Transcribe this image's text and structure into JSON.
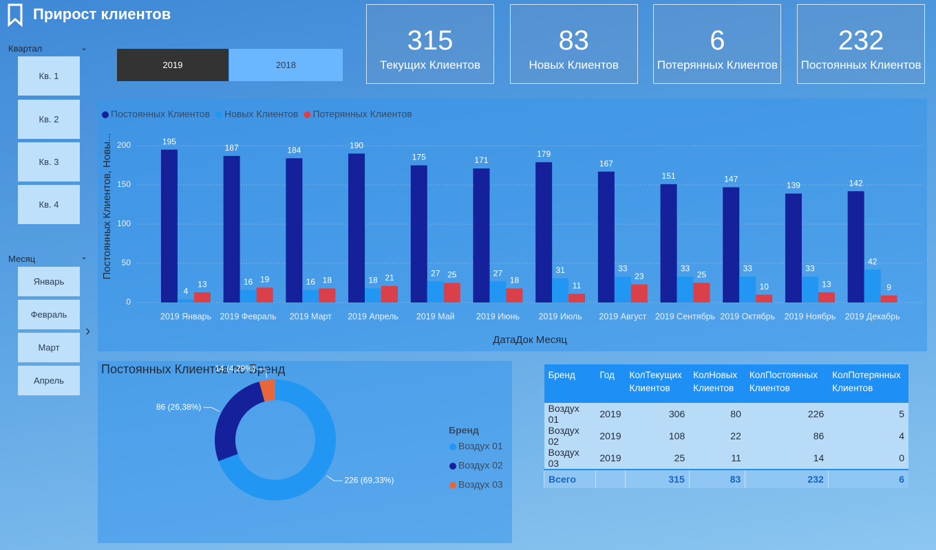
{
  "header": {
    "title": "Прирост клиентов"
  },
  "slicers": {
    "quarter": {
      "title": "Квартал",
      "items": [
        "Кв. 1",
        "Кв. 2",
        "Кв. 3",
        "Кв. 4"
      ]
    },
    "month": {
      "title": "Месяц",
      "items": [
        "Январь",
        "Февраль",
        "Март",
        "Апрель"
      ]
    }
  },
  "year_toggle": {
    "options": [
      "2019",
      "2018"
    ],
    "selected": 0
  },
  "cards": [
    {
      "value": 315,
      "label": "Текущих Клиентов"
    },
    {
      "value": 83,
      "label": "Новых Клиентов"
    },
    {
      "value": 6,
      "label": "Потерянных Клиентов"
    },
    {
      "value": 232,
      "label": "Постоянных Клиентов"
    }
  ],
  "chart_data": [
    {
      "type": "bar",
      "x_label": "ДатаДок Месяц",
      "y_label": "Постоянных Клиентов, Новы...",
      "categories": [
        "2019 Январь",
        "2019 Февраль",
        "2019 Март",
        "2019 Апрель",
        "2019 Май",
        "2019 Июнь",
        "2019 Июль",
        "2019 Август",
        "2019 Сентябрь",
        "2019 Октябрь",
        "2019 Ноябрь",
        "2019 Декабрь"
      ],
      "series": [
        {
          "name": "Постоянных Клиентов",
          "color": "#14219b",
          "values": [
            195,
            187,
            184,
            190,
            175,
            171,
            179,
            167,
            151,
            147,
            139,
            142
          ]
        },
        {
          "name": "Новых Клиентов",
          "color": "#2196f3",
          "values": [
            4,
            16,
            16,
            18,
            27,
            27,
            31,
            33,
            33,
            33,
            33,
            42
          ]
        },
        {
          "name": "Потерянных Клиентов",
          "color": "#d9404a",
          "values": [
            13,
            19,
            18,
            21,
            25,
            18,
            11,
            23,
            25,
            10,
            13,
            9
          ]
        }
      ],
      "ylim": [
        0,
        220
      ],
      "yticks": [
        0,
        50,
        100,
        150,
        200
      ],
      "grid": true,
      "legend": "top-left"
    },
    {
      "type": "donut",
      "title": "Постоянных Клиентов по Бренд",
      "legend_title": "Бренд",
      "categories": [
        "Воздух 01",
        "Воздух 02",
        "Воздух 03"
      ],
      "values": [
        226,
        86,
        14
      ],
      "value_labels": [
        "226 (69,33%)",
        "86 (26,38%)",
        "14 (4,29%)"
      ],
      "colors": [
        "#2196f3",
        "#14219b",
        "#e8673a"
      ],
      "legend": "right"
    }
  ],
  "table": {
    "columns": [
      "Бренд",
      "Год",
      "КолТекущих Клиентов",
      "КолНовых Клиентов",
      "КолПостоянных Клиентов",
      "КолПотерянных Клиентов"
    ],
    "rows": [
      [
        "Воздух 01",
        2019,
        306,
        80,
        226,
        5
      ],
      [
        "Воздух 02",
        2019,
        108,
        22,
        86,
        4
      ],
      [
        "Воздух 03",
        2019,
        25,
        11,
        14,
        0
      ]
    ],
    "total": {
      "label": "Всего",
      "values": [
        315,
        83,
        232,
        6
      ]
    }
  }
}
